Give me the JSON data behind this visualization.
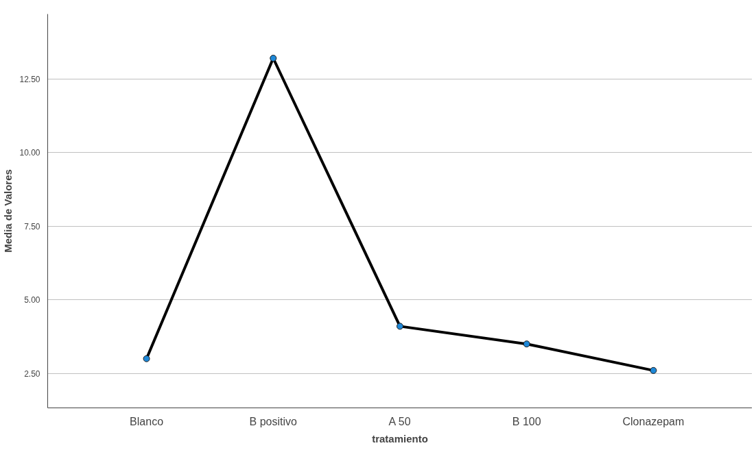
{
  "chart_data": {
    "type": "line",
    "xlabel": "tratamiento",
    "ylabel": "Media de Valores",
    "categories": [
      "Blanco",
      "B positivo",
      "A 50",
      "B 100",
      "Clonazepam"
    ],
    "series": [
      {
        "color": "#000000",
        "values": [
          3.0,
          13.2,
          4.1,
          3.5,
          2.6
        ]
      }
    ],
    "ylim": [
      1.33,
      14.7
    ],
    "yticks": [
      {
        "value": 2.5,
        "label": "2.50"
      },
      {
        "value": 5,
        "label": "5.00"
      },
      {
        "value": 7.5,
        "label": "7.50"
      },
      {
        "value": 10,
        "label": "10.00"
      },
      {
        "value": 12.5,
        "label": "12.50"
      }
    ],
    "grid": "y",
    "marker": "circle",
    "line_style": "solid"
  }
}
